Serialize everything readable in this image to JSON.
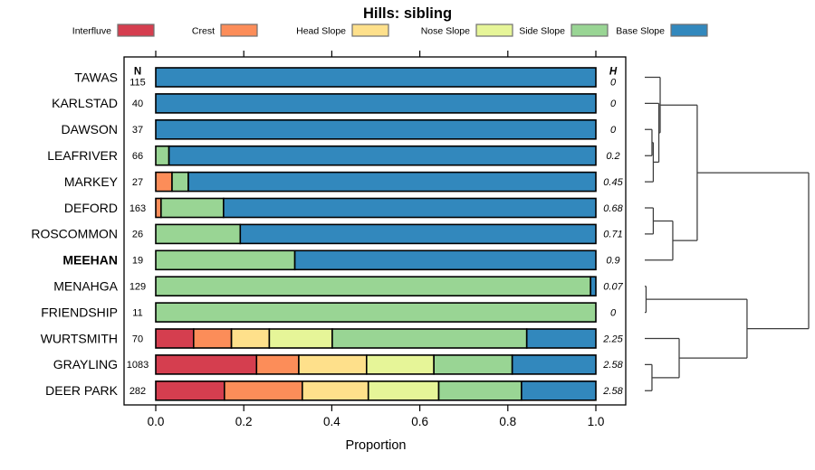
{
  "title": "Hills: sibling",
  "chart_data": {
    "type": "bar",
    "subtype": "horizontal-stacked-with-dendrogram",
    "title": "Hills: sibling",
    "xlabel": "Proportion",
    "xlim": [
      0,
      1
    ],
    "xticks": [
      "0.0",
      "0.2",
      "0.4",
      "0.6",
      "0.8",
      "1.0"
    ],
    "grid": false,
    "legend_position": "top",
    "legend": [
      {
        "label": "Interfluve",
        "color": "#D53E4F"
      },
      {
        "label": "Crest",
        "color": "#FC8D59"
      },
      {
        "label": "Head Slope",
        "color": "#FEE08B"
      },
      {
        "label": "Nose Slope",
        "color": "#E6F598"
      },
      {
        "label": "Side Slope",
        "color": "#99D594"
      },
      {
        "label": "Base Slope",
        "color": "#3288BD"
      }
    ],
    "columns": {
      "n_header": "N",
      "h_header": "H"
    },
    "rows": [
      {
        "label": "TAWAS",
        "n": "115",
        "h": "0",
        "bold": false,
        "values": [
          0,
          0,
          0,
          0,
          0,
          1.0
        ]
      },
      {
        "label": "KARLSTAD",
        "n": "40",
        "h": "0",
        "bold": false,
        "values": [
          0,
          0,
          0,
          0,
          0,
          1.0
        ]
      },
      {
        "label": "DAWSON",
        "n": "37",
        "h": "0",
        "bold": false,
        "values": [
          0,
          0,
          0,
          0,
          0,
          1.0
        ]
      },
      {
        "label": "LEAFRIVER",
        "n": "66",
        "h": "0.2",
        "bold": false,
        "values": [
          0,
          0,
          0,
          0,
          0.03,
          0.97
        ]
      },
      {
        "label": "MARKEY",
        "n": "27",
        "h": "0.45",
        "bold": false,
        "values": [
          0,
          0.037,
          0,
          0,
          0.037,
          0.926
        ]
      },
      {
        "label": "DEFORD",
        "n": "163",
        "h": "0.68",
        "bold": false,
        "values": [
          0,
          0.012,
          0,
          0,
          0.142,
          0.846
        ]
      },
      {
        "label": "ROSCOMMON",
        "n": "26",
        "h": "0.71",
        "bold": false,
        "values": [
          0,
          0,
          0,
          0,
          0.192,
          0.808
        ]
      },
      {
        "label": "MEEHAN",
        "n": "19",
        "h": "0.9",
        "bold": true,
        "values": [
          0,
          0,
          0,
          0,
          0.316,
          0.684
        ]
      },
      {
        "label": "MENAHGA",
        "n": "129",
        "h": "0.07",
        "bold": false,
        "values": [
          0,
          0,
          0,
          0,
          0.988,
          0.012
        ]
      },
      {
        "label": "FRIENDSHIP",
        "n": "11",
        "h": "0",
        "bold": false,
        "values": [
          0,
          0,
          0,
          0,
          1.0,
          0
        ]
      },
      {
        "label": "WURTSMITH",
        "n": "70",
        "h": "2.25",
        "bold": false,
        "values": [
          0.086,
          0.086,
          0.086,
          0.143,
          0.442,
          0.157
        ]
      },
      {
        "label": "GRAYLING",
        "n": "1083",
        "h": "2.58",
        "bold": false,
        "values": [
          0.229,
          0.096,
          0.154,
          0.153,
          0.178,
          0.19
        ]
      },
      {
        "label": "DEER PARK",
        "n": "282",
        "h": "2.58",
        "bold": false,
        "values": [
          0.156,
          0.177,
          0.15,
          0.16,
          0.188,
          0.169
        ]
      }
    ],
    "dendrogram": {
      "orientation": "right",
      "merges": [
        {
          "id": "M0",
          "a": "L2",
          "b": "L3",
          "height": 0.044
        },
        {
          "id": "M1",
          "a": "M0",
          "b": "L4",
          "height": 0.052
        },
        {
          "id": "M2",
          "a": "L1",
          "b": "M1",
          "height": 0.086
        },
        {
          "id": "M3",
          "a": "L0",
          "b": "M2",
          "height": 0.094
        },
        {
          "id": "M4",
          "a": "L5",
          "b": "L6",
          "height": 0.052
        },
        {
          "id": "M5",
          "a": "M4",
          "b": "L7",
          "height": 0.171
        },
        {
          "id": "M6",
          "a": "M3",
          "b": "M5",
          "height": 0.32
        },
        {
          "id": "M7",
          "a": "L8",
          "b": "L9",
          "height": 0.008
        },
        {
          "id": "M8",
          "a": "L11",
          "b": "L12",
          "height": 0.044
        },
        {
          "id": "M9",
          "a": "L10",
          "b": "M8",
          "height": 0.21
        },
        {
          "id": "M10",
          "a": "M7",
          "b": "M9",
          "height": 0.624
        },
        {
          "id": "M11",
          "a": "M6",
          "b": "M10",
          "height": 1.0
        }
      ]
    }
  }
}
